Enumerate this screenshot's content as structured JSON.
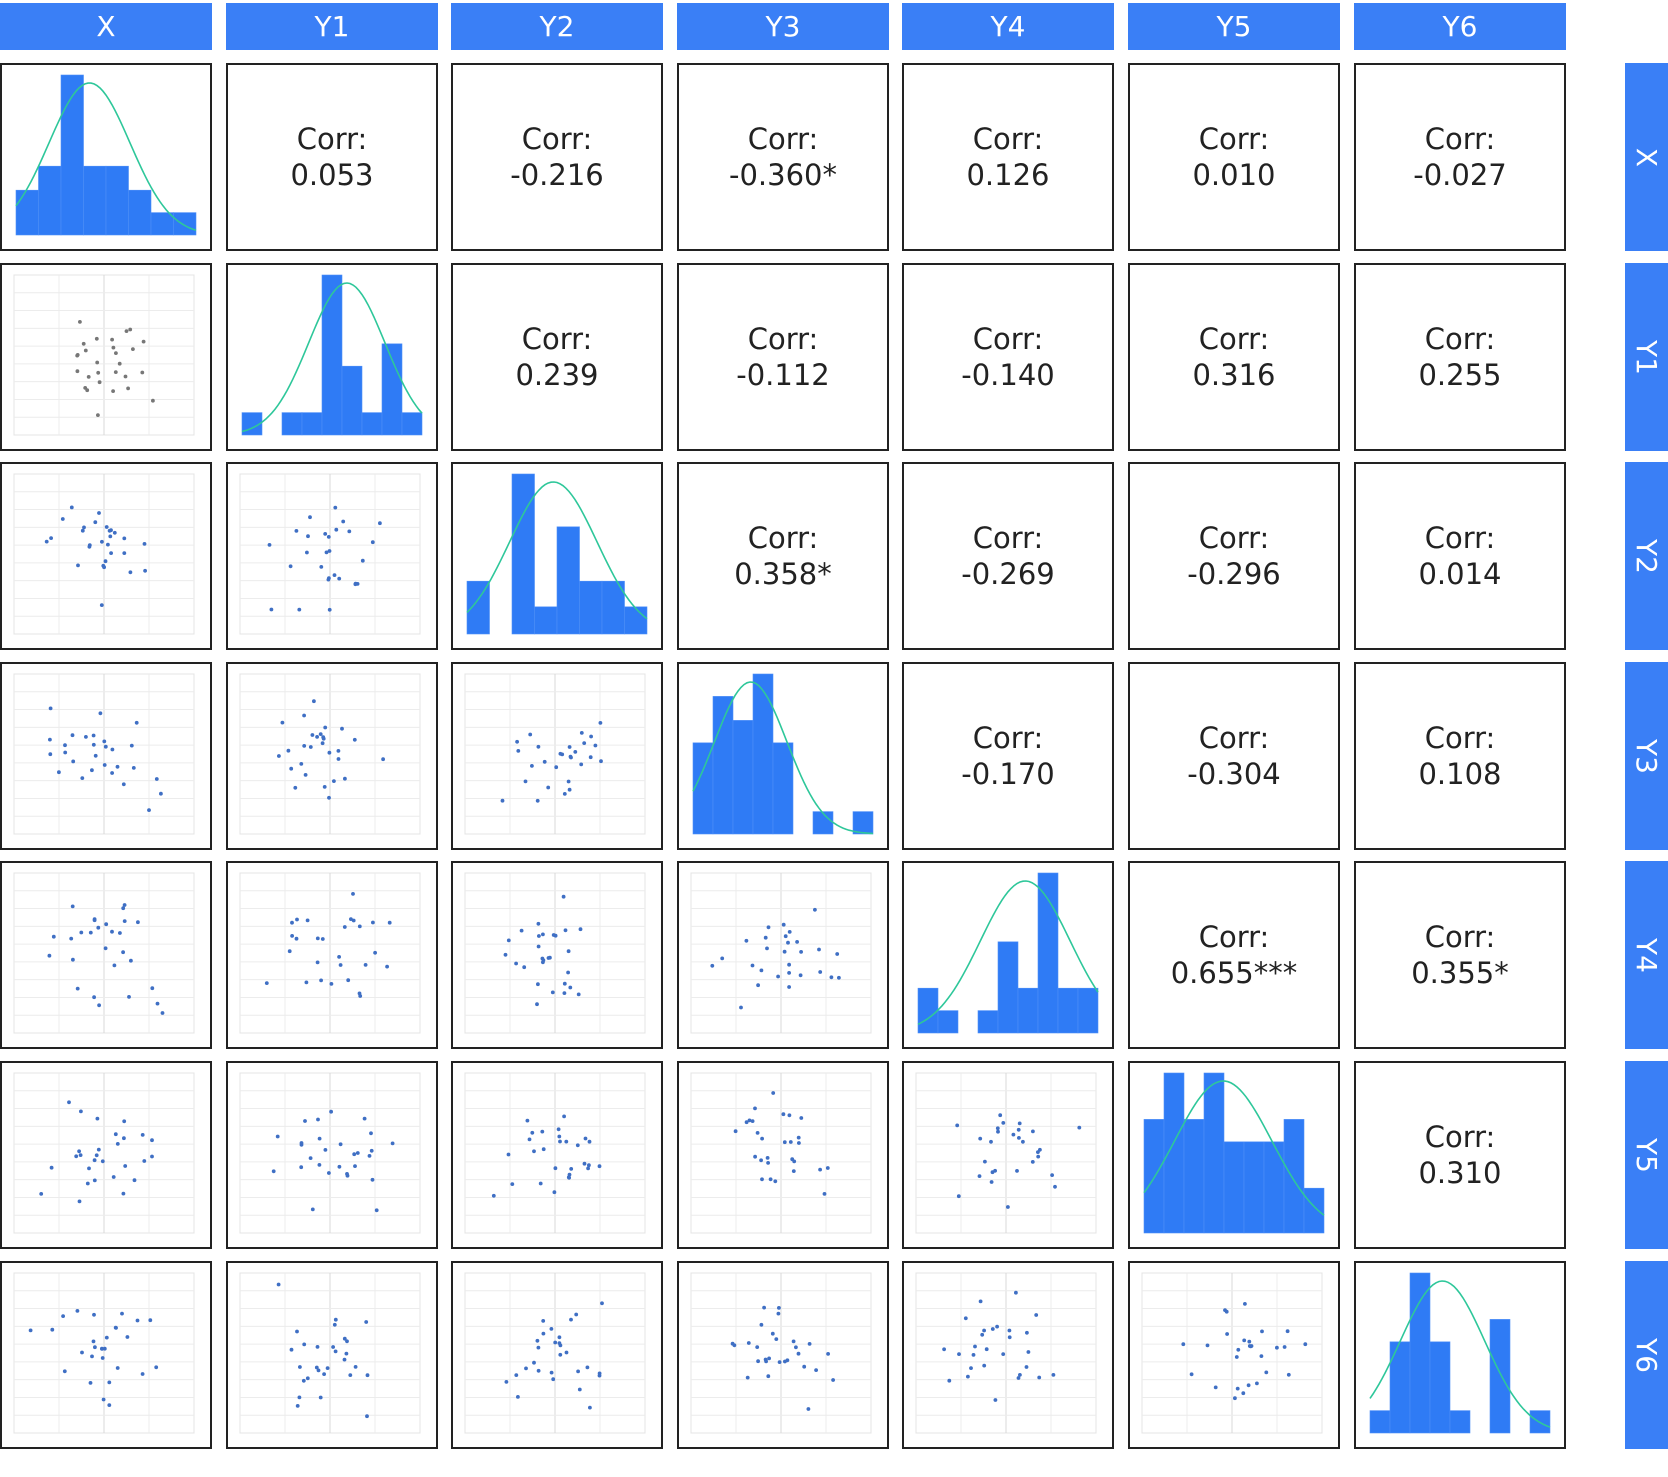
{
  "chart_data": {
    "type": "scatter-matrix",
    "variables": [
      "X",
      "Y1",
      "Y2",
      "Y3",
      "Y4",
      "Y5",
      "Y6"
    ],
    "corr_label": "Corr:",
    "correlations": [
      [
        null,
        "0.053",
        "-0.216",
        "-0.360*",
        "0.126",
        "0.010",
        "-0.027"
      ],
      [
        null,
        null,
        "0.239",
        "-0.112",
        "-0.140",
        "0.316",
        "0.255"
      ],
      [
        null,
        null,
        null,
        "0.358*",
        "-0.269",
        "-0.296",
        "0.014"
      ],
      [
        null,
        null,
        null,
        null,
        "-0.170",
        "-0.304",
        "0.108"
      ],
      [
        null,
        null,
        null,
        null,
        null,
        "0.655***",
        "0.355*"
      ],
      [
        null,
        null,
        null,
        null,
        null,
        null,
        "0.310"
      ]
    ],
    "histogram_heights": {
      "X": [
        0.28,
        0.43,
        1.0,
        0.43,
        0.43,
        0.28,
        0.14,
        0.14
      ],
      "Y1": [
        0.14,
        0.0,
        0.14,
        0.14,
        1.0,
        0.43,
        0.14,
        0.57,
        0.14
      ],
      "Y2": [
        0.33,
        0.0,
        1.0,
        0.17,
        0.67,
        0.33,
        0.33,
        0.17
      ],
      "Y3": [
        0.57,
        0.86,
        0.71,
        1.0,
        0.57,
        0.0,
        0.14,
        0.0,
        0.14
      ],
      "Y4": [
        0.28,
        0.14,
        0.0,
        0.14,
        0.57,
        0.28,
        1.0,
        0.28,
        0.28
      ],
      "Y5": [
        0.71,
        1.0,
        0.71,
        1.0,
        0.57,
        0.57,
        0.57,
        0.71,
        0.28
      ],
      "Y6": [
        0.14,
        0.57,
        1.0,
        0.57,
        0.14,
        0.0,
        0.71,
        0.0,
        0.14
      ]
    },
    "colors": {
      "header": "#3a7ff6",
      "bar": "#2f7bf5",
      "curve": "#2ec79a",
      "point": "#3f6fc4"
    }
  }
}
